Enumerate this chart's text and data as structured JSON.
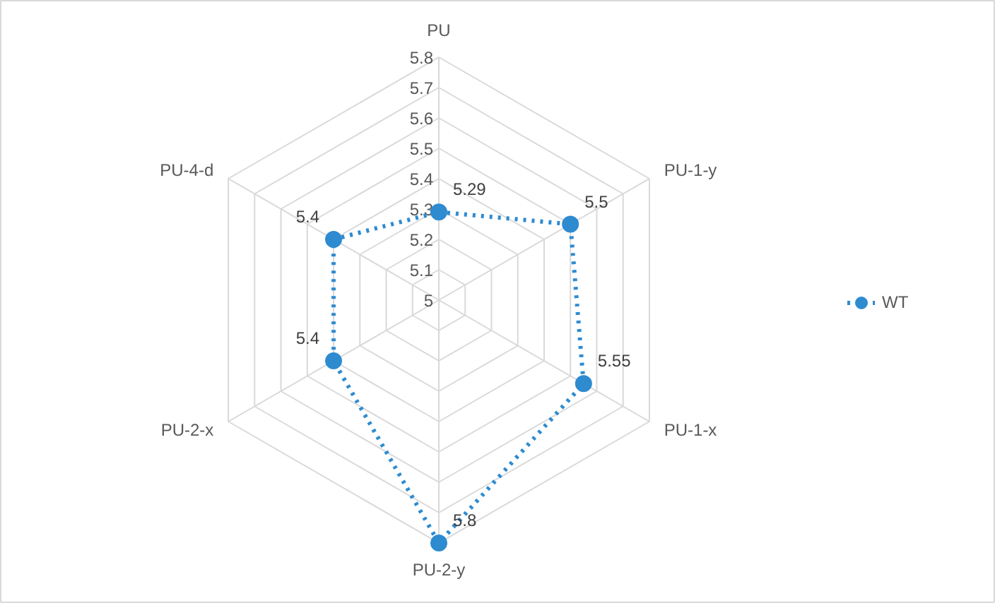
{
  "chart_data": {
    "type": "radar",
    "categories": [
      "PU",
      "PU-1-y",
      "PU-1-x",
      "PU-2-y",
      "PU-2-x",
      "PU-4-d"
    ],
    "series": [
      {
        "name": "WT",
        "color": "#2e8bd0",
        "values": [
          5.29,
          5.5,
          5.55,
          5.8,
          5.4,
          5.4
        ]
      }
    ],
    "ylim": [
      5,
      5.8
    ],
    "yticks": [
      5,
      5.1,
      5.2,
      5.3,
      5.4,
      5.5,
      5.6,
      5.7,
      5.8
    ],
    "data_labels": true,
    "legend": "right",
    "marker": "circle",
    "line_style": "dotted",
    "grid": true
  }
}
